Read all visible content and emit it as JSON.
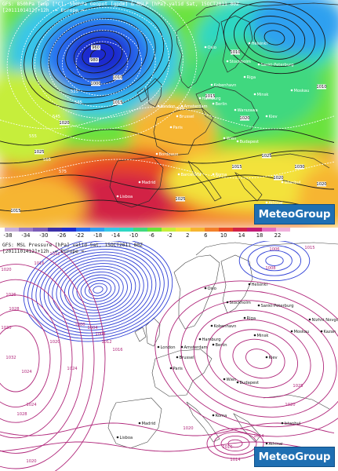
{
  "top_map": {
    "header_line1": "GFS: 850hPa Temp [°C], 500hPa Geopot [gpdm] & MSLP [hPa] valid Sat, 15OCT2011 00Z",
    "header_line2": "[2011101412]+12h  -= Europe =-",
    "brand": "MeteoGroup",
    "pressure_labels": [
      "960",
      "980",
      "1000",
      "1010",
      "1015",
      "1020",
      "1025",
      "1010",
      "1015",
      "1020",
      "1025",
      "1010",
      "1015",
      "1020",
      "1025",
      "1030",
      "1020",
      "1015"
    ],
    "geopot_labels": [
      "525",
      "535",
      "545",
      "555",
      "565",
      "575",
      "580"
    ],
    "city_labels": [
      "Oslo",
      "Helsinki",
      "Stockholm",
      "Sankt-Peterburg",
      "Moskau",
      "Kobenhavn",
      "Hamburg",
      "Amsterdam",
      "Brussel",
      "Paris",
      "Wien",
      "Budapest",
      "Bordeaux",
      "Barcelona",
      "Madrid",
      "Lisboa",
      "Roma",
      "Athinai",
      "Istanbul",
      "Kiev",
      "Minsk",
      "Riga",
      "Warszawa",
      "Berlin",
      "London"
    ]
  },
  "colorbar": {
    "ticks": [
      "-38",
      "-34",
      "-30",
      "-26",
      "-22",
      "-18",
      "-14",
      "-10",
      "-6",
      "-2",
      "2",
      "6",
      "10",
      "14",
      "18",
      "22"
    ],
    "colors": [
      "#c8b0dc",
      "#9b7ec8",
      "#7a5cb8",
      "#3b2fa8",
      "#1d2ccf",
      "#2a6ff0",
      "#2fa0f0",
      "#37c6e8",
      "#2fd7c3",
      "#41d87f",
      "#6be23c",
      "#c6ee3b",
      "#f3e23b",
      "#f6b531",
      "#f3812b",
      "#ea4a24",
      "#d22245",
      "#c21a75",
      "#e36ec0",
      "#f0b2dc"
    ]
  },
  "bottom_map": {
    "header_line1": "GFS: MSL Pressure [hPa] valid Sat, 15OCT2011 00Z",
    "header_line2": "[2011101412]+12h  -= Europe =-",
    "brand": "MeteoGroup",
    "pressure_labels": [
      "1015",
      "1020",
      "1026",
      "1028",
      "1030",
      "1032",
      "1020",
      "1024",
      "1024",
      "1000",
      "1004",
      "1008",
      "1012",
      "1016",
      "1028",
      "1024",
      "1020",
      "1016",
      "1012",
      "1008",
      "1006",
      "1020",
      "1025",
      "1018",
      "1016",
      "1014",
      "1020",
      "1014"
    ],
    "city_labels": [
      "Oslo",
      "Helsinki",
      "Stockholm",
      "Sankt-Peterburg",
      "Moskau",
      "Kobenhavn",
      "Hamburg",
      "Amsterdam",
      "Brussel",
      "Paris",
      "Wien",
      "Budapest",
      "Madrid",
      "Lisboa",
      "Roma",
      "Athinai",
      "Istanbul",
      "Kiev",
      "Minsk",
      "Riga",
      "Berlin",
      "London",
      "Nizhni Novgorod",
      "Kazan"
    ]
  }
}
